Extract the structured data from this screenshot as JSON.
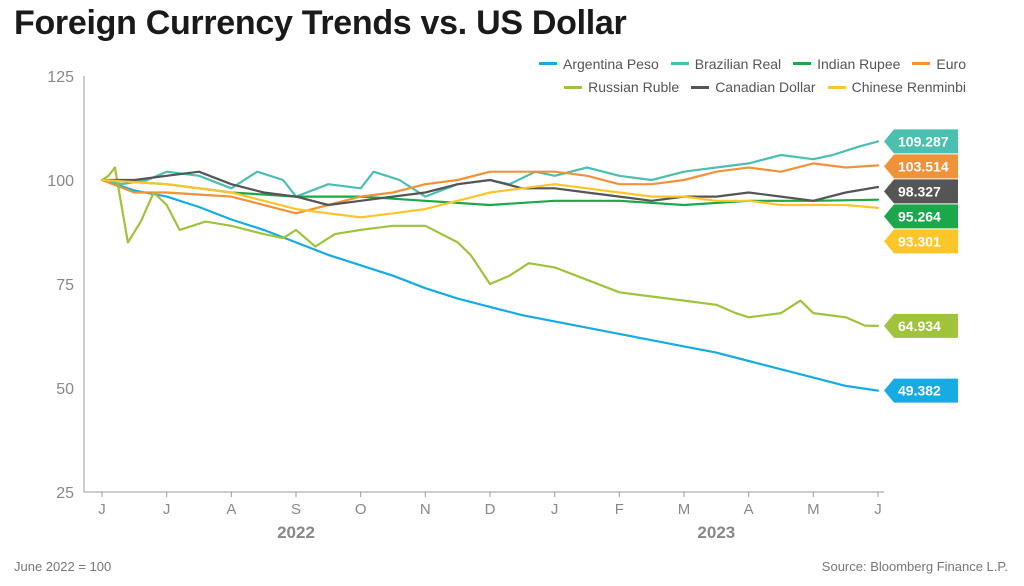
{
  "title": "Foreign Currency Trends vs. US Dollar",
  "footnote": "June 2022 = 100",
  "source": "Source: Bloomberg Finance L.P.",
  "chart_data": {
    "type": "line",
    "title": "Foreign Currency Trends vs. US Dollar",
    "xlabel": "",
    "ylabel": "",
    "ylim": [
      25,
      125
    ],
    "yticks": [
      125,
      100,
      75,
      50,
      25
    ],
    "months": [
      "J",
      "J",
      "A",
      "S",
      "O",
      "N",
      "D",
      "J",
      "F",
      "M",
      "A",
      "M",
      "J"
    ],
    "years": [
      {
        "label": "2022",
        "month_index": 3
      },
      {
        "label": "2023",
        "month_index": 9.5
      }
    ],
    "series": [
      {
        "name": "Argentina Peso",
        "color": "#16ace3",
        "end_label": "49.382",
        "values": [
          [
            0,
            100
          ],
          [
            0.5,
            97.5
          ],
          [
            1,
            96
          ],
          [
            1.5,
            93.5
          ],
          [
            2,
            90.5
          ],
          [
            2.5,
            88
          ],
          [
            3,
            85
          ],
          [
            3.5,
            82
          ],
          [
            4,
            79.5
          ],
          [
            4.5,
            77
          ],
          [
            5,
            74
          ],
          [
            5.5,
            71.5
          ],
          [
            6,
            69.5
          ],
          [
            6.5,
            67.5
          ],
          [
            7,
            66
          ],
          [
            7.5,
            64.5
          ],
          [
            8,
            63
          ],
          [
            8.5,
            61.5
          ],
          [
            9,
            60
          ],
          [
            9.5,
            58.5
          ],
          [
            10,
            56.5
          ],
          [
            10.5,
            54.5
          ],
          [
            11,
            52.5
          ],
          [
            11.5,
            50.5
          ],
          [
            12,
            49.382
          ]
        ]
      },
      {
        "name": "Brazilian Real",
        "color": "#4bbfb0",
        "end_label": "109.287",
        "values": [
          [
            0,
            100
          ],
          [
            0.3,
            99
          ],
          [
            0.7,
            100
          ],
          [
            1,
            102
          ],
          [
            1.5,
            101
          ],
          [
            2,
            98
          ],
          [
            2.4,
            102
          ],
          [
            2.8,
            100
          ],
          [
            3,
            96
          ],
          [
            3.5,
            99
          ],
          [
            4,
            98
          ],
          [
            4.2,
            102
          ],
          [
            4.6,
            100
          ],
          [
            5,
            96
          ],
          [
            5.5,
            99
          ],
          [
            6,
            100
          ],
          [
            6.3,
            99
          ],
          [
            6.7,
            102
          ],
          [
            7,
            101
          ],
          [
            7.5,
            103
          ],
          [
            8,
            101
          ],
          [
            8.5,
            100
          ],
          [
            9,
            102
          ],
          [
            9.5,
            103
          ],
          [
            10,
            104
          ],
          [
            10.5,
            106
          ],
          [
            11,
            105
          ],
          [
            11.3,
            106
          ],
          [
            11.7,
            108
          ],
          [
            12,
            109.287
          ]
        ]
      },
      {
        "name": "Indian Rupee",
        "color": "#1aa84a",
        "end_label": "95.264",
        "values": [
          [
            0,
            100
          ],
          [
            1,
            99
          ],
          [
            2,
            97
          ],
          [
            3,
            96
          ],
          [
            4,
            96
          ],
          [
            5,
            95
          ],
          [
            6,
            94
          ],
          [
            7,
            95
          ],
          [
            8,
            95
          ],
          [
            9,
            94
          ],
          [
            10,
            95
          ],
          [
            11,
            95
          ],
          [
            12,
            95.264
          ]
        ]
      },
      {
        "name": "Euro",
        "color": "#f0923a",
        "end_label": "103.514",
        "values": [
          [
            0,
            100
          ],
          [
            0.5,
            97
          ],
          [
            1,
            97
          ],
          [
            2,
            96
          ],
          [
            3,
            92
          ],
          [
            3.5,
            94
          ],
          [
            4,
            96
          ],
          [
            4.5,
            97
          ],
          [
            5,
            99
          ],
          [
            5.5,
            100
          ],
          [
            6,
            102
          ],
          [
            6.5,
            102
          ],
          [
            7,
            102
          ],
          [
            7.5,
            101
          ],
          [
            8,
            99
          ],
          [
            8.5,
            99
          ],
          [
            9,
            100
          ],
          [
            9.5,
            102
          ],
          [
            10,
            103
          ],
          [
            10.5,
            102
          ],
          [
            11,
            104
          ],
          [
            11.5,
            103
          ],
          [
            12,
            103.514
          ]
        ]
      },
      {
        "name": "Russian Ruble",
        "color": "#9fc33b",
        "end_label": "64.934",
        "values": [
          [
            0,
            100
          ],
          [
            0.1,
            101
          ],
          [
            0.2,
            103
          ],
          [
            0.3,
            94
          ],
          [
            0.4,
            85
          ],
          [
            0.6,
            90
          ],
          [
            0.8,
            97
          ],
          [
            1,
            94
          ],
          [
            1.2,
            88
          ],
          [
            1.6,
            90
          ],
          [
            2,
            89
          ],
          [
            2.5,
            87
          ],
          [
            2.8,
            86
          ],
          [
            3,
            88
          ],
          [
            3.3,
            84
          ],
          [
            3.6,
            87
          ],
          [
            4,
            88
          ],
          [
            4.5,
            89
          ],
          [
            5,
            89
          ],
          [
            5.5,
            85
          ],
          [
            5.7,
            82
          ],
          [
            6,
            75
          ],
          [
            6.3,
            77
          ],
          [
            6.6,
            80
          ],
          [
            7,
            79
          ],
          [
            7.5,
            76
          ],
          [
            8,
            73
          ],
          [
            8.5,
            72
          ],
          [
            9,
            71
          ],
          [
            9.5,
            70
          ],
          [
            9.8,
            68
          ],
          [
            10,
            67
          ],
          [
            10.5,
            68
          ],
          [
            10.8,
            71
          ],
          [
            11,
            68
          ],
          [
            11.5,
            67
          ],
          [
            11.8,
            65
          ],
          [
            12,
            64.934
          ]
        ]
      },
      {
        "name": "Canadian Dollar",
        "color": "#555555",
        "end_label": "98.327",
        "values": [
          [
            0,
            100
          ],
          [
            0.5,
            100
          ],
          [
            1,
            101
          ],
          [
            1.5,
            102
          ],
          [
            2,
            99
          ],
          [
            2.5,
            97
          ],
          [
            3,
            96
          ],
          [
            3.5,
            94
          ],
          [
            4,
            95
          ],
          [
            4.5,
            96
          ],
          [
            5,
            97
          ],
          [
            5.5,
            99
          ],
          [
            6,
            100
          ],
          [
            6.5,
            98
          ],
          [
            7,
            98
          ],
          [
            7.5,
            97
          ],
          [
            8,
            96
          ],
          [
            8.5,
            95
          ],
          [
            9,
            96
          ],
          [
            9.5,
            96
          ],
          [
            10,
            97
          ],
          [
            10.5,
            96
          ],
          [
            11,
            95
          ],
          [
            11.5,
            97
          ],
          [
            12,
            98.327
          ]
        ]
      },
      {
        "name": "Chinese Renminbi",
        "color": "#fcc52a",
        "end_label": "93.301",
        "values": [
          [
            0,
            100
          ],
          [
            1,
            99
          ],
          [
            2,
            97
          ],
          [
            2.5,
            95
          ],
          [
            3,
            93
          ],
          [
            3.5,
            92
          ],
          [
            4,
            91
          ],
          [
            4.5,
            92
          ],
          [
            5,
            93
          ],
          [
            5.5,
            95
          ],
          [
            6,
            97
          ],
          [
            6.5,
            98
          ],
          [
            7,
            99
          ],
          [
            7.5,
            98
          ],
          [
            8,
            97
          ],
          [
            8.5,
            96
          ],
          [
            9,
            96
          ],
          [
            9.5,
            95
          ],
          [
            10,
            95
          ],
          [
            10.5,
            94
          ],
          [
            11,
            94
          ],
          [
            11.5,
            94
          ],
          [
            12,
            93.301
          ]
        ]
      }
    ]
  }
}
